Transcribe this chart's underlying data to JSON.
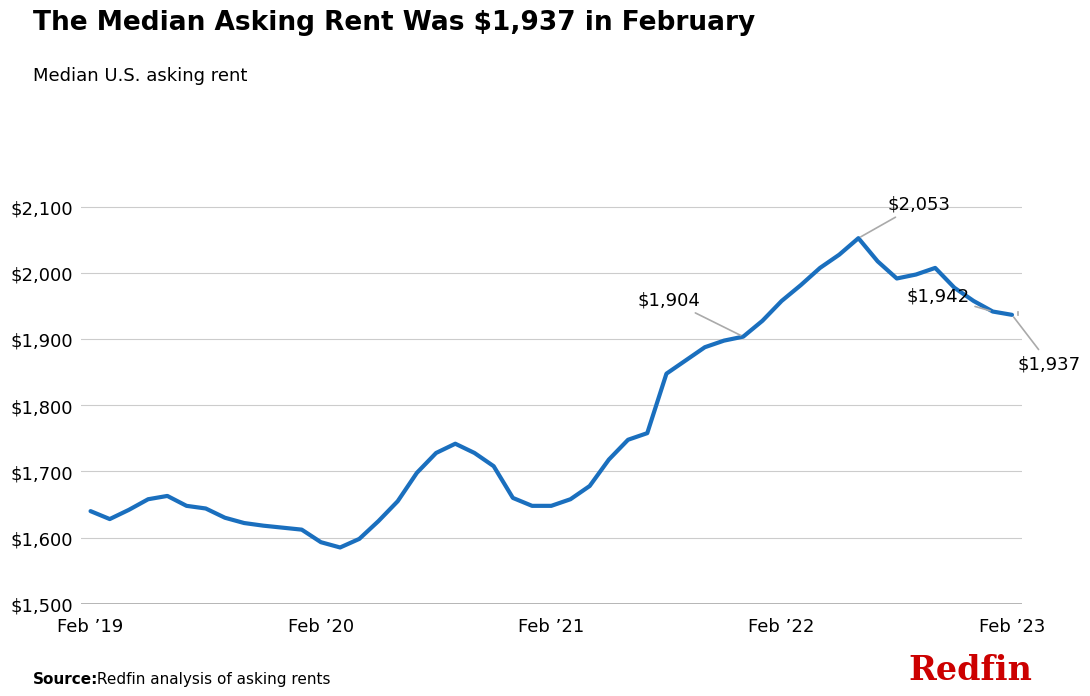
{
  "title": "The Median Asking Rent Was $1,937 in February",
  "subtitle": "Median U.S. asking rent",
  "source_bold": "Source:",
  "source_text": " Redfin analysis of asking rents",
  "line_color": "#1a6fbe",
  "line_width": 3.0,
  "background_color": "#ffffff",
  "ylim": [
    1500,
    2150
  ],
  "yticks": [
    1500,
    1600,
    1700,
    1800,
    1900,
    2000,
    2100
  ],
  "values": [
    1640,
    1628,
    1642,
    1658,
    1663,
    1648,
    1644,
    1630,
    1622,
    1618,
    1615,
    1612,
    1593,
    1585,
    1598,
    1625,
    1655,
    1698,
    1728,
    1742,
    1728,
    1708,
    1660,
    1648,
    1648,
    1658,
    1678,
    1718,
    1748,
    1758,
    1848,
    1868,
    1888,
    1898,
    1904,
    1928,
    1958,
    1982,
    2008,
    2028,
    2053,
    2018,
    1992,
    1998,
    2008,
    1978,
    1958,
    1942,
    1937
  ],
  "xtick_labels": [
    "Feb ’19",
    "Feb ’20",
    "Feb ’21",
    "Feb ’22",
    "Feb ’23"
  ],
  "xtick_positions": [
    0,
    12,
    24,
    36,
    48
  ],
  "ann_2053_xi": 40,
  "ann_2053_y": 2053,
  "ann_1904_xi": 34,
  "ann_1904_y": 1904,
  "ann_1942_xi": 47,
  "ann_1942_y": 1942,
  "ann_1937_xi": 48,
  "ann_1937_y": 1937,
  "redfin_color": "#cc0000"
}
